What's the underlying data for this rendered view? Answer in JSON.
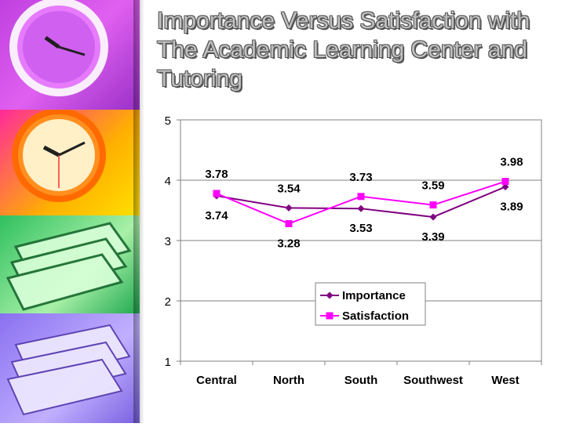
{
  "page": {
    "title": "Importance Versus Satisfaction with The Academic Learning Center and Tutoring"
  },
  "sidebar": {
    "images": [
      {
        "icon": "wall-clock-icon",
        "color": "#c040e0"
      },
      {
        "icon": "wall-clock-icon",
        "color": "#ff9020"
      },
      {
        "icon": "paper-stack-icon",
        "color": "#30c060"
      },
      {
        "icon": "paper-stack-icon",
        "color": "#9a80f0"
      }
    ]
  },
  "chart_data": {
    "type": "line",
    "title": "",
    "xlabel": "",
    "ylabel": "",
    "categories": [
      "Central",
      "North",
      "South",
      "Southwest",
      "West"
    ],
    "ylim": [
      1,
      5
    ],
    "yticks": [
      1,
      2,
      3,
      4,
      5
    ],
    "grid": true,
    "legend_position": "inside-lower-right",
    "series": [
      {
        "name": "Importance",
        "values": [
          3.74,
          3.54,
          3.53,
          3.39,
          3.89
        ],
        "color": "#800080",
        "marker": "diamond"
      },
      {
        "name": "Satisfaction",
        "values": [
          3.78,
          3.28,
          3.73,
          3.59,
          3.98
        ],
        "color": "#ff00ff",
        "marker": "square"
      }
    ],
    "data_labels": [
      {
        "series": "Satisfaction",
        "category": "Central",
        "text": "3.78",
        "position": "above"
      },
      {
        "series": "Importance",
        "category": "Central",
        "text": "3.74",
        "position": "below"
      },
      {
        "series": "Importance",
        "category": "North",
        "text": "3.54",
        "position": "above"
      },
      {
        "series": "Satisfaction",
        "category": "North",
        "text": "3.28",
        "position": "below"
      },
      {
        "series": "Satisfaction",
        "category": "South",
        "text": "3.73",
        "position": "above"
      },
      {
        "series": "Importance",
        "category": "South",
        "text": "3.53",
        "position": "below"
      },
      {
        "series": "Satisfaction",
        "category": "Southwest",
        "text": "3.59",
        "position": "above"
      },
      {
        "series": "Importance",
        "category": "Southwest",
        "text": "3.39",
        "position": "below"
      },
      {
        "series": "Satisfaction",
        "category": "West",
        "text": "3.98",
        "position": "above"
      },
      {
        "series": "Importance",
        "category": "West",
        "text": "3.89",
        "position": "below"
      }
    ]
  }
}
